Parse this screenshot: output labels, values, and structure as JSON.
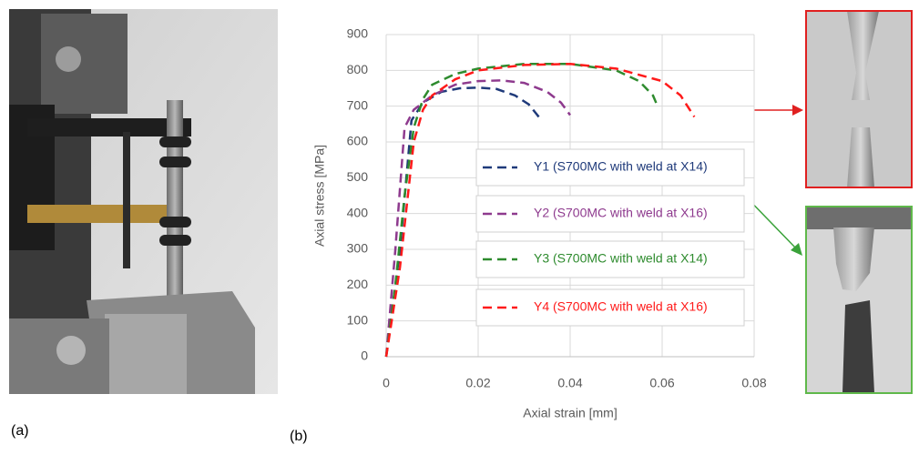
{
  "panel_labels": [
    "(a)",
    "(b)"
  ],
  "chart_data": {
    "type": "line",
    "xlabel": "Axial strain [mm]",
    "ylabel": "Axial stress [MPa]",
    "xlim": [
      0,
      0.08
    ],
    "ylim": [
      0,
      900
    ],
    "xticks": [
      0,
      0.02,
      0.04,
      0.06,
      0.08
    ],
    "yticks": [
      0,
      100,
      200,
      300,
      400,
      500,
      600,
      700,
      800,
      900
    ],
    "grid": true,
    "line_style": "dashed",
    "series": [
      {
        "name": "Y1 (S700MC with weld at X14)",
        "color": "#1f3a7a",
        "x": [
          0,
          0.003,
          0.0055,
          0.008,
          0.012,
          0.016,
          0.02,
          0.024,
          0.028,
          0.031,
          0.0335
        ],
        "values": [
          0,
          300,
          660,
          710,
          740,
          750,
          752,
          748,
          730,
          705,
          665
        ]
      },
      {
        "name": "Y2 (S700MC with weld at X16)",
        "color": "#8e3a8e",
        "x": [
          0,
          0.002,
          0.004,
          0.006,
          0.01,
          0.015,
          0.02,
          0.025,
          0.03,
          0.035,
          0.038,
          0.04
        ],
        "values": [
          0,
          300,
          640,
          690,
          730,
          760,
          770,
          772,
          765,
          740,
          710,
          675
        ]
      },
      {
        "name": "Y3 (S700MC with weld at X14)",
        "color": "#2e8b2e",
        "x": [
          0,
          0.002,
          0.004,
          0.006,
          0.008,
          0.01,
          0.015,
          0.02,
          0.03,
          0.04,
          0.05,
          0.055,
          0.058,
          0.059
        ],
        "values": [
          0,
          200,
          450,
          640,
          720,
          760,
          790,
          805,
          818,
          818,
          800,
          770,
          730,
          700
        ]
      },
      {
        "name": "Y4 (S700MC with weld at X16)",
        "color": "#ff1a1a",
        "x": [
          0,
          0.003,
          0.006,
          0.008,
          0.01,
          0.015,
          0.02,
          0.03,
          0.04,
          0.05,
          0.06,
          0.064,
          0.066,
          0.067
        ],
        "values": [
          0,
          250,
          600,
          690,
          730,
          775,
          800,
          815,
          818,
          805,
          770,
          730,
          690,
          670
        ]
      }
    ]
  }
}
